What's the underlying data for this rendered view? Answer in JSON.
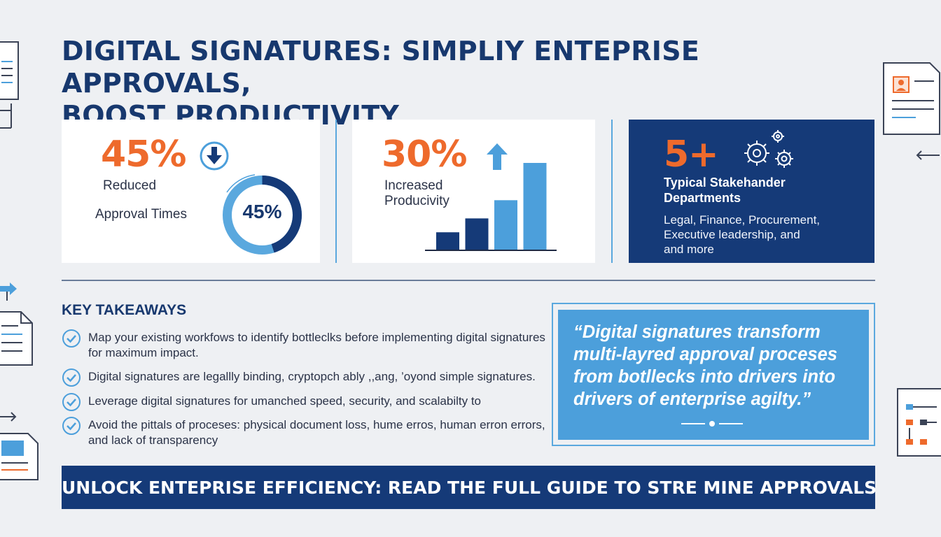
{
  "title": {
    "line1": "DIGITAL SIGNATURES: SIMPLIY ENTEPRISE APPROVALS,",
    "line2": "BOOST PRODUCTIVITY"
  },
  "stats": [
    {
      "value": "45%",
      "label_line1": "Reduced",
      "label_line2": "Approval Times",
      "ring_value": "45%",
      "ring_fraction": 0.45,
      "icon": "arrow-down-circle-icon"
    },
    {
      "value": "30%",
      "label_line1": "Increased",
      "label_line2": "Producivity",
      "icon": "arrow-up-icon",
      "bar_levels": [
        0.2,
        0.36,
        0.57,
        1.0
      ]
    },
    {
      "value": "5+",
      "heading_line1": "Typical Stakehander",
      "heading_line2": "Departments",
      "detail_lines": [
        "Legal, Finance, Procurement,",
        "Executive leadership, and",
        "and more"
      ],
      "icon": "gears-icon"
    }
  ],
  "key_takeaways": {
    "heading": "KEY TAKEAWAYS",
    "items": [
      "Map your existing workfows to identify bottleclks before implementing digital signatures for maximum impact.",
      "Digital signatures are legallly binding, cryptopch ably ,,ang, ’oyond simple signatures.",
      "Leverage digital signatures for umanched speed, security, and scalabilty to",
      "Avoid the pittals of proceses: physical document loss, hume erros, human erron errors, and lack of transparency"
    ]
  },
  "quote": {
    "text": "“Digital signatures transform multi-layred approval proceses from botllecks into drivers into drivers of enterprise agilty.”"
  },
  "banner": {
    "text": "UNLOCK ENTEPRISE EFFICIENCY: READ THE FULL GUIDE TO STRE MINE APPROVALS"
  },
  "colors": {
    "navy": "#153a78",
    "orange": "#ee6a2c",
    "sky": "#4c9fdb",
    "light_blue": "#5aa8de",
    "background": "#eef0f3"
  }
}
